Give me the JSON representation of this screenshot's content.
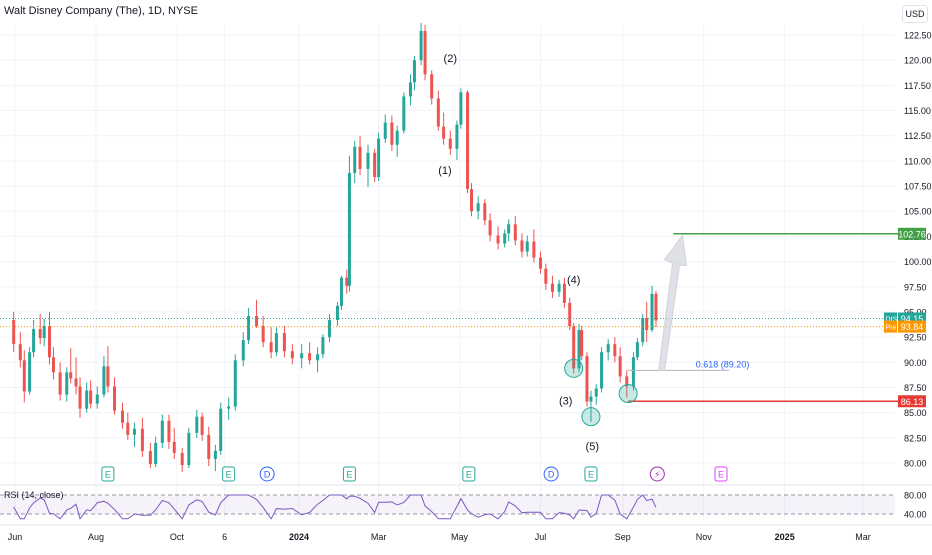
{
  "header": {
    "title": "Walt Disney Company (The), 1D, NYSE",
    "currency": "USD"
  },
  "rsi": {
    "title": "RSI (14, close)",
    "ticks": [
      "80.00",
      "40.00"
    ]
  },
  "chart_data": {
    "type": "candlestick",
    "symbol": "DIS",
    "interval": "1D",
    "exchange": "NYSE",
    "ylim": [
      78.5,
      124
    ],
    "y_ticks": [
      "122.50",
      "120.00",
      "117.50",
      "115.00",
      "112.50",
      "110.00",
      "107.50",
      "105.00",
      "102.50",
      "100.00",
      "97.50",
      "95.00",
      "92.50",
      "90.00",
      "87.50",
      "85.00",
      "82.50",
      "80.00"
    ],
    "x_ticks": [
      "Jun",
      "Aug",
      "Oct",
      "6",
      "2024",
      "Mar",
      "May",
      "Jul",
      "Sep",
      "Nov",
      "2025",
      "Mar"
    ],
    "price_labels": [
      {
        "tag": "DIS",
        "value": "94.15",
        "color": "#26a69a"
      },
      {
        "tag": "Pre",
        "value": "93.84",
        "color": "#ff9800"
      }
    ],
    "levels": [
      {
        "value": 102.76,
        "label": "102.76",
        "color": "#43a047"
      },
      {
        "value": 86.13,
        "label": "86.13",
        "color": "#e53935"
      }
    ],
    "fib": {
      "value": 89.2,
      "label": "0.618 (89.20)"
    },
    "wave_labels": [
      {
        "text": "(2)",
        "date": "2024-04-24",
        "price": 119.8
      },
      {
        "text": "(1)",
        "date": "2024-04-20",
        "price": 108.7
      },
      {
        "text": "(4)",
        "date": "2024-07-26",
        "price": 97.8
      },
      {
        "text": "(3)",
        "date": "2024-07-20",
        "price": 85.8
      },
      {
        "text": "(5)",
        "date": "2024-08-09",
        "price": 81.3
      }
    ],
    "event_markers": [
      {
        "kind": "E",
        "date": "2023-08-10"
      },
      {
        "kind": "E",
        "date": "2023-11-09"
      },
      {
        "kind": "D",
        "date": "2023-12-08"
      },
      {
        "kind": "E",
        "date": "2024-02-08"
      },
      {
        "kind": "E",
        "date": "2024-05-08"
      },
      {
        "kind": "D",
        "date": "2024-07-09"
      },
      {
        "kind": "E",
        "date": "2024-08-08"
      },
      {
        "kind": "⚡",
        "date": "2024-09-27"
      },
      {
        "kind": "E",
        "date": "2024-11-14"
      }
    ],
    "candles": [
      [
        "2023-05-31",
        94.2,
        95.0,
        91.0,
        91.8
      ],
      [
        "2023-06-05",
        91.8,
        93.0,
        89.5,
        90.2
      ],
      [
        "2023-06-08",
        90.2,
        91.2,
        86.0,
        87.1
      ],
      [
        "2023-06-12",
        87.1,
        91.5,
        86.8,
        91.0
      ],
      [
        "2023-06-15",
        91.0,
        94.2,
        90.5,
        93.3
      ],
      [
        "2023-06-20",
        93.3,
        94.8,
        91.8,
        92.4
      ],
      [
        "2023-06-23",
        92.4,
        94.3,
        91.6,
        93.6
      ],
      [
        "2023-06-27",
        93.6,
        95.0,
        89.8,
        90.5
      ],
      [
        "2023-06-30",
        90.5,
        91.5,
        88.3,
        89.0
      ],
      [
        "2023-07-05",
        89.0,
        90.0,
        86.2,
        86.8
      ],
      [
        "2023-07-10",
        86.8,
        89.5,
        86.1,
        89.0
      ],
      [
        "2023-07-13",
        89.0,
        91.4,
        87.9,
        88.4
      ],
      [
        "2023-07-17",
        88.4,
        90.5,
        86.8,
        87.6
      ],
      [
        "2023-07-20",
        87.6,
        88.5,
        84.5,
        85.4
      ],
      [
        "2023-07-25",
        85.4,
        88.0,
        85.0,
        87.2
      ],
      [
        "2023-07-28",
        87.2,
        88.2,
        85.4,
        85.9
      ],
      [
        "2023-08-02",
        85.9,
        87.6,
        85.4,
        86.8
      ],
      [
        "2023-08-07",
        86.8,
        90.6,
        86.5,
        89.6
      ],
      [
        "2023-08-10",
        89.6,
        91.6,
        87.0,
        87.6
      ],
      [
        "2023-08-15",
        87.6,
        88.5,
        84.8,
        85.2
      ],
      [
        "2023-08-21",
        85.2,
        86.0,
        83.4,
        84.0
      ],
      [
        "2023-08-25",
        84.0,
        85.0,
        82.3,
        82.8
      ],
      [
        "2023-08-30",
        82.8,
        84.0,
        81.6,
        83.4
      ],
      [
        "2023-09-05",
        83.4,
        84.5,
        80.6,
        81.2
      ],
      [
        "2023-09-11",
        81.2,
        82.0,
        79.5,
        79.9
      ],
      [
        "2023-09-15",
        79.9,
        82.6,
        79.6,
        82.0
      ],
      [
        "2023-09-20",
        82.0,
        84.8,
        81.5,
        84.2
      ],
      [
        "2023-09-25",
        84.2,
        84.8,
        81.4,
        82.1
      ],
      [
        "2023-09-29",
        82.1,
        83.5,
        80.4,
        81.0
      ],
      [
        "2023-10-05",
        81.0,
        81.5,
        79.1,
        79.8
      ],
      [
        "2023-10-10",
        79.8,
        83.5,
        79.5,
        83.0
      ],
      [
        "2023-10-16",
        83.0,
        85.3,
        82.5,
        84.6
      ],
      [
        "2023-10-20",
        84.6,
        85.0,
        82.2,
        82.8
      ],
      [
        "2023-10-25",
        82.8,
        83.6,
        79.7,
        80.4
      ],
      [
        "2023-10-30",
        80.4,
        81.8,
        79.2,
        81.2
      ],
      [
        "2023-11-03",
        81.2,
        86.0,
        80.8,
        85.4
      ],
      [
        "2023-11-09",
        85.4,
        86.5,
        84.3,
        85.6
      ],
      [
        "2023-11-14",
        85.6,
        90.8,
        85.2,
        90.2
      ],
      [
        "2023-11-20",
        90.2,
        93.0,
        89.6,
        92.2
      ],
      [
        "2023-11-24",
        92.2,
        95.4,
        91.8,
        94.6
      ],
      [
        "2023-11-30",
        94.6,
        96.2,
        93.4,
        93.6
      ],
      [
        "2023-12-05",
        93.6,
        94.6,
        91.5,
        92.0
      ],
      [
        "2023-12-11",
        92.0,
        93.5,
        90.4,
        91.0
      ],
      [
        "2023-12-15",
        91.0,
        93.5,
        90.6,
        92.9
      ],
      [
        "2023-12-21",
        92.9,
        93.6,
        90.5,
        91.1
      ],
      [
        "2023-12-27",
        91.1,
        91.8,
        89.8,
        90.4
      ],
      [
        "2024-01-03",
        90.4,
        91.8,
        89.4,
        90.9
      ],
      [
        "2024-01-09",
        90.9,
        92.0,
        89.8,
        90.2
      ],
      [
        "2024-01-15",
        90.2,
        91.5,
        89.0,
        90.8
      ],
      [
        "2024-01-19",
        90.8,
        92.8,
        90.4,
        92.5
      ],
      [
        "2024-01-24",
        92.5,
        94.8,
        92.0,
        94.2
      ],
      [
        "2024-01-30",
        94.2,
        96.0,
        93.6,
        95.6
      ],
      [
        "2024-02-02",
        95.6,
        98.6,
        95.2,
        98.4
      ],
      [
        "2024-02-06",
        98.4,
        99.2,
        96.8,
        97.6
      ],
      [
        "2024-02-08",
        97.6,
        110.5,
        97.0,
        108.8
      ],
      [
        "2024-02-12",
        108.8,
        112.0,
        107.8,
        111.4
      ],
      [
        "2024-02-16",
        111.4,
        112.5,
        108.6,
        109.2
      ],
      [
        "2024-02-22",
        109.2,
        111.6,
        107.4,
        110.8
      ],
      [
        "2024-02-27",
        110.8,
        111.2,
        107.9,
        108.4
      ],
      [
        "2024-03-01",
        108.4,
        112.8,
        108.0,
        112.2
      ],
      [
        "2024-03-06",
        112.2,
        114.6,
        111.8,
        113.8
      ],
      [
        "2024-03-11",
        113.8,
        114.5,
        111.0,
        111.6
      ],
      [
        "2024-03-15",
        111.6,
        113.5,
        110.4,
        113.0
      ],
      [
        "2024-03-20",
        113.0,
        116.8,
        112.7,
        116.4
      ],
      [
        "2024-03-25",
        116.4,
        118.6,
        115.5,
        117.8
      ],
      [
        "2024-03-28",
        117.8,
        120.4,
        117.0,
        120.0
      ],
      [
        "2024-04-02",
        120.0,
        123.7,
        119.5,
        122.9
      ],
      [
        "2024-04-05",
        122.9,
        123.5,
        118.0,
        118.6
      ],
      [
        "2024-04-10",
        118.6,
        119.0,
        115.6,
        116.2
      ],
      [
        "2024-04-15",
        116.2,
        117.0,
        113.0,
        113.4
      ],
      [
        "2024-04-19",
        113.4,
        114.8,
        111.6,
        112.2
      ],
      [
        "2024-04-24",
        112.2,
        113.0,
        110.6,
        111.2
      ],
      [
        "2024-04-29",
        111.2,
        114.0,
        110.1,
        113.6
      ],
      [
        "2024-05-02",
        113.6,
        117.2,
        113.2,
        116.8
      ],
      [
        "2024-05-07",
        116.8,
        117.0,
        106.8,
        107.2
      ],
      [
        "2024-05-10",
        107.2,
        107.8,
        104.5,
        105.0
      ],
      [
        "2024-05-15",
        105.0,
        106.5,
        104.2,
        105.8
      ],
      [
        "2024-05-20",
        105.8,
        106.2,
        103.6,
        104.1
      ],
      [
        "2024-05-24",
        104.1,
        104.8,
        102.0,
        102.6
      ],
      [
        "2024-05-30",
        102.6,
        103.5,
        101.2,
        101.8
      ],
      [
        "2024-06-04",
        101.8,
        103.2,
        101.4,
        102.8
      ],
      [
        "2024-06-07",
        102.8,
        104.2,
        102.0,
        103.7
      ],
      [
        "2024-06-12",
        103.7,
        104.5,
        101.6,
        102.1
      ],
      [
        "2024-06-17",
        102.1,
        102.8,
        100.4,
        101.0
      ],
      [
        "2024-06-21",
        101.0,
        102.6,
        100.5,
        102.0
      ],
      [
        "2024-06-26",
        102.0,
        103.2,
        99.9,
        100.4
      ],
      [
        "2024-07-01",
        100.4,
        101.0,
        98.8,
        99.3
      ],
      [
        "2024-07-05",
        99.3,
        99.8,
        97.2,
        97.8
      ],
      [
        "2024-07-10",
        97.8,
        98.6,
        96.4,
        97.0
      ],
      [
        "2024-07-15",
        97.0,
        98.2,
        96.5,
        97.8
      ],
      [
        "2024-07-19",
        97.8,
        98.4,
        95.4,
        95.9
      ],
      [
        "2024-07-23",
        95.9,
        96.4,
        93.2,
        93.6
      ],
      [
        "2024-07-26",
        93.6,
        93.9,
        88.9,
        89.4
      ],
      [
        "2024-07-30",
        89.4,
        93.8,
        89.0,
        93.2
      ],
      [
        "2024-08-01",
        93.2,
        93.6,
        90.2,
        90.6
      ],
      [
        "2024-08-05",
        90.6,
        91.0,
        85.6,
        86.1
      ],
      [
        "2024-08-08",
        86.1,
        87.2,
        84.1,
        86.6
      ],
      [
        "2024-08-12",
        86.6,
        87.8,
        85.8,
        87.4
      ],
      [
        "2024-08-16",
        87.4,
        91.5,
        87.0,
        91.0
      ],
      [
        "2024-08-21",
        91.0,
        92.3,
        90.2,
        91.8
      ],
      [
        "2024-08-26",
        91.8,
        92.5,
        90.0,
        90.6
      ],
      [
        "2024-08-30",
        90.6,
        91.5,
        88.0,
        88.6
      ],
      [
        "2024-09-04",
        88.6,
        89.2,
        86.5,
        87.6
      ],
      [
        "2024-09-09",
        87.6,
        91.0,
        87.2,
        90.5
      ],
      [
        "2024-09-12",
        90.5,
        92.4,
        90.2,
        92.0
      ],
      [
        "2024-09-16",
        92.0,
        94.8,
        91.6,
        94.4
      ],
      [
        "2024-09-19",
        94.4,
        96.0,
        92.0,
        93.2
      ],
      [
        "2024-09-23",
        93.2,
        97.6,
        93.0,
        96.8
      ],
      [
        "2024-09-26",
        96.8,
        97.1,
        93.5,
        94.15
      ]
    ]
  }
}
